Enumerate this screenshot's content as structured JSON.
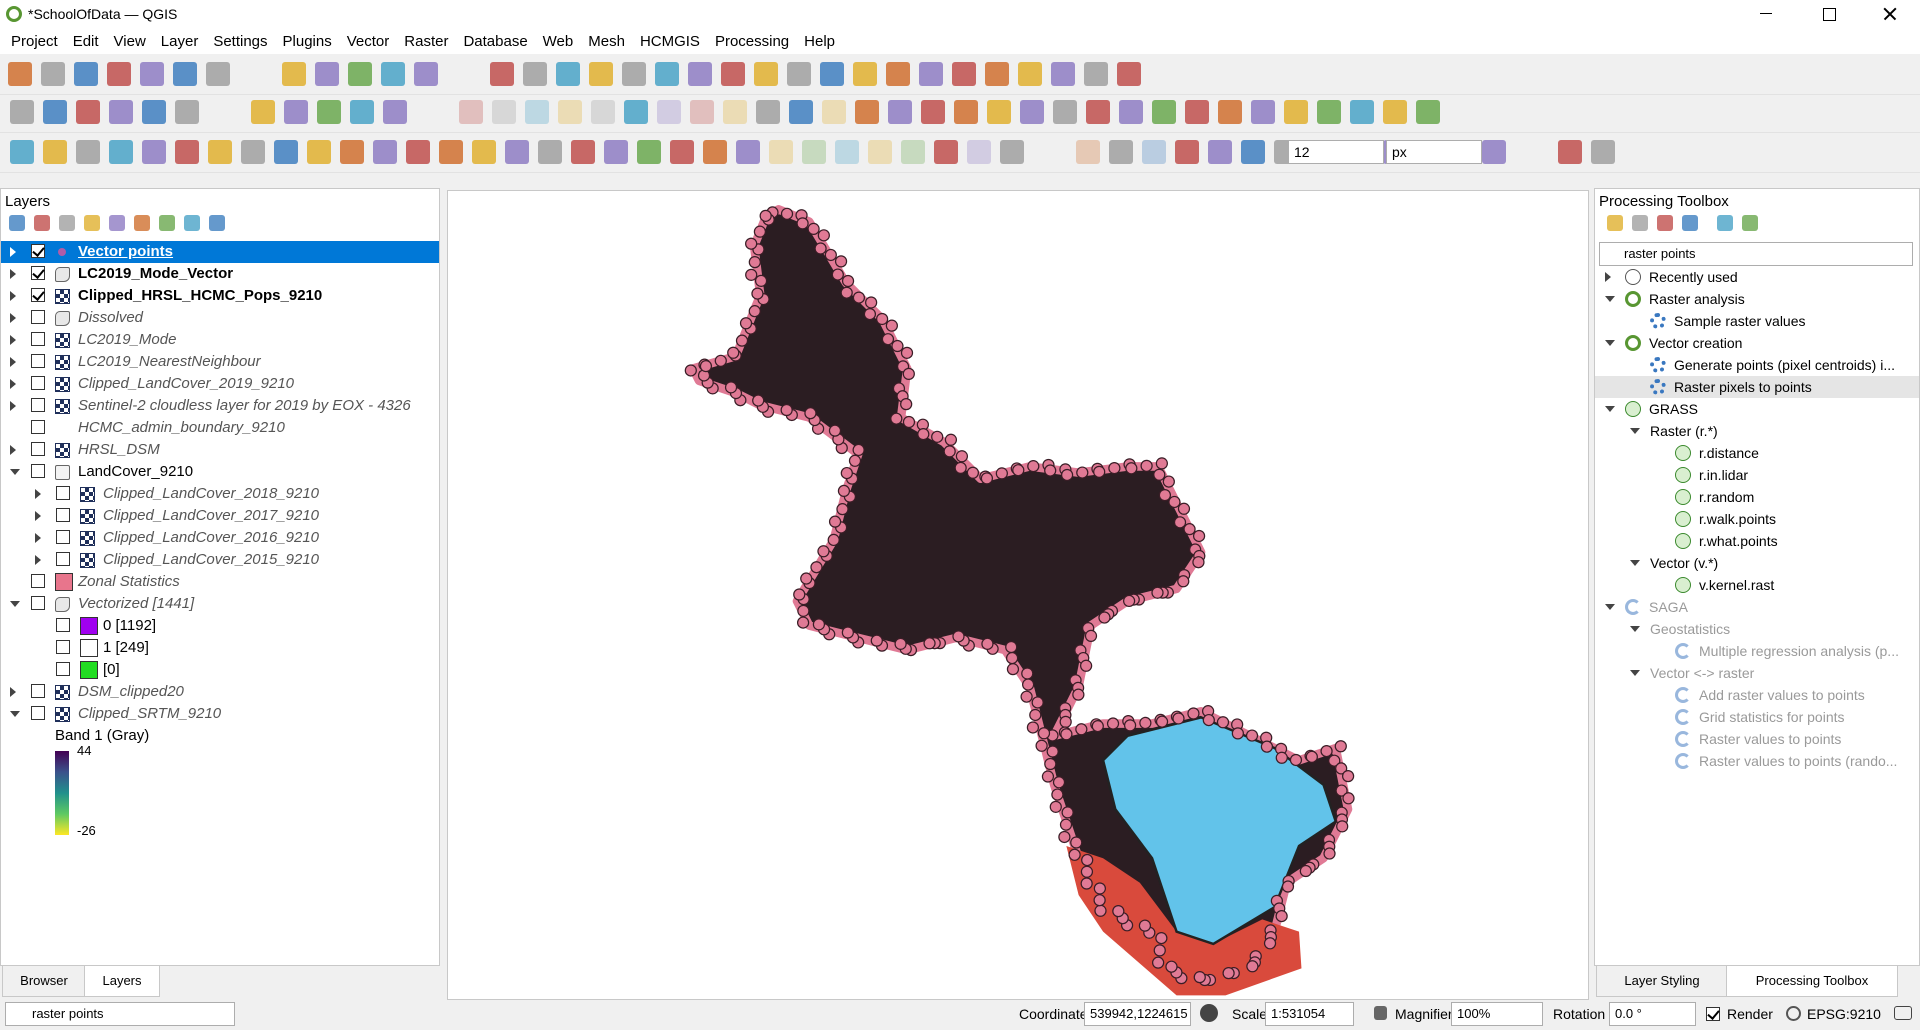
{
  "window": {
    "title": "*SchoolOfData — QGIS"
  },
  "menu": [
    "Project",
    "Edit",
    "View",
    "Layer",
    "Settings",
    "Plugins",
    "Vector",
    "Raster",
    "Database",
    "Web",
    "Mesh",
    "HCMGIS",
    "Processing",
    "Help"
  ],
  "toolbar": {
    "size": 12,
    "unit": "px"
  },
  "layers_panel": {
    "title": "Layers",
    "layers": [
      {
        "name": "Vector points",
        "checked": true,
        "style": "bold",
        "kind": "point",
        "expanded": false,
        "selected": true
      },
      {
        "name": "LC2019_Mode_Vector",
        "checked": true,
        "style": "bold",
        "kind": "polygon",
        "expanded": false
      },
      {
        "name": "Clipped_HRSL_HCMC_Pops_9210",
        "checked": true,
        "style": "bold",
        "kind": "raster",
        "expanded": false
      },
      {
        "name": "Dissolved",
        "checked": false,
        "style": "italic",
        "kind": "polygon",
        "expanded": false
      },
      {
        "name": "LC2019_Mode",
        "checked": false,
        "style": "italic",
        "kind": "raster",
        "expanded": false
      },
      {
        "name": "LC2019_NearestNeighbour",
        "checked": false,
        "style": "italic",
        "kind": "raster",
        "expanded": false
      },
      {
        "name": "Clipped_LandCover_2019_9210",
        "checked": false,
        "style": "italic",
        "kind": "raster",
        "expanded": false
      },
      {
        "name": "Sentinel-2 cloudless layer for 2019 by EOX - 4326",
        "checked": false,
        "style": "italic",
        "kind": "raster",
        "expanded": false
      },
      {
        "name": "HCMC_admin_boundary_9210",
        "checked": false,
        "style": "italic",
        "kind": "none"
      },
      {
        "name": "HRSL_DSM",
        "checked": false,
        "style": "italic",
        "kind": "raster",
        "expanded": false
      },
      {
        "name": "LandCover_9210",
        "checked": false,
        "style": "normal",
        "kind": "group",
        "expanded": true,
        "children": [
          {
            "name": "Clipped_LandCover_2018_9210",
            "checked": false,
            "style": "italic",
            "kind": "raster",
            "expanded": false
          },
          {
            "name": "Clipped_LandCover_2017_9210",
            "checked": false,
            "style": "italic",
            "kind": "raster",
            "expanded": false
          },
          {
            "name": "Clipped_LandCover_2016_9210",
            "checked": false,
            "style": "italic",
            "kind": "raster",
            "expanded": false
          },
          {
            "name": "Clipped_LandCover_2015_9210",
            "checked": false,
            "style": "italic",
            "kind": "raster",
            "expanded": false
          }
        ]
      },
      {
        "name": "Zonal Statistics",
        "checked": false,
        "style": "italic",
        "kind": "swatch",
        "color": "#e8758c"
      },
      {
        "name": "Vectorized [1441]",
        "checked": false,
        "style": "italic",
        "kind": "polygon",
        "expanded": true,
        "children": [
          {
            "name": "0 [1192]",
            "checked": false,
            "style": "normal",
            "kind": "swatch",
            "color": "#a000f0"
          },
          {
            "name": "1 [249]",
            "checked": false,
            "style": "normal",
            "kind": "swatch",
            "color": "#ffffff"
          },
          {
            "name": "[0]",
            "checked": false,
            "style": "normal",
            "kind": "swatch",
            "color": "#22dd22"
          }
        ]
      },
      {
        "name": "DSM_clipped20",
        "checked": false,
        "style": "italic",
        "kind": "raster",
        "expanded": false
      },
      {
        "name": "Clipped_SRTM_9210",
        "checked": false,
        "style": "italic",
        "kind": "raster",
        "expanded": true,
        "legend": {
          "title": "Band 1 (Gray)",
          "max": 44,
          "min": -26
        }
      }
    ],
    "tabs": [
      "Browser",
      "Layers"
    ]
  },
  "toolbox": {
    "title": "Processing Toolbox",
    "search": "raster points",
    "items": [
      {
        "label": "Recently used",
        "icon": "clock",
        "expanded": false
      },
      {
        "label": "Raster analysis",
        "icon": "qgis",
        "expanded": true,
        "children": [
          {
            "label": "Sample raster values",
            "icon": "gear"
          }
        ]
      },
      {
        "label": "Vector creation",
        "icon": "qgis",
        "expanded": true,
        "children": [
          {
            "label": "Generate points (pixel centroids) i...",
            "icon": "gear"
          },
          {
            "label": "Raster pixels to points",
            "icon": "gear",
            "selected": true
          }
        ]
      },
      {
        "label": "GRASS",
        "icon": "grass",
        "expanded": true,
        "children": [
          {
            "label": "Raster (r.*)",
            "icon": "none",
            "expanded": true,
            "children": [
              {
                "label": "r.distance",
                "icon": "grass"
              },
              {
                "label": "r.in.lidar",
                "icon": "grass"
              },
              {
                "label": "r.random",
                "icon": "grass"
              },
              {
                "label": "r.walk.points",
                "icon": "grass"
              },
              {
                "label": "r.what.points",
                "icon": "grass"
              }
            ]
          },
          {
            "label": "Vector (v.*)",
            "icon": "none",
            "expanded": true,
            "children": [
              {
                "label": "v.kernel.rast",
                "icon": "grass"
              }
            ]
          }
        ]
      },
      {
        "label": "SAGA",
        "icon": "saga",
        "expanded": true,
        "disabled": true,
        "children": [
          {
            "label": "Geostatistics",
            "icon": "none",
            "expanded": true,
            "disabled": true,
            "children": [
              {
                "label": "Multiple regression analysis (p...",
                "icon": "saga",
                "disabled": true
              }
            ]
          },
          {
            "label": "Vector <-> raster",
            "icon": "none",
            "expanded": true,
            "disabled": true,
            "children": [
              {
                "label": "Add raster values to points",
                "icon": "saga",
                "disabled": true
              },
              {
                "label": "Grid statistics for points",
                "icon": "saga",
                "disabled": true
              },
              {
                "label": "Raster values to points",
                "icon": "saga",
                "disabled": true
              },
              {
                "label": "Raster values to points (rando...",
                "icon": "saga",
                "disabled": true
              }
            ]
          }
        ]
      }
    ],
    "tabs": [
      "Layer Styling",
      "Processing Toolbox"
    ]
  },
  "status": {
    "search": "raster points",
    "coordinate_label": "Coordinate",
    "coordinate": "539942,1224615",
    "scale_label": "Scale",
    "scale": "1:531054",
    "magnifier_label": "Magnifier",
    "magnifier": "100%",
    "rotation_label": "Rotation",
    "rotation": "0.0 °",
    "render_checked": true,
    "render": "Render",
    "crs": "EPSG:9210"
  }
}
